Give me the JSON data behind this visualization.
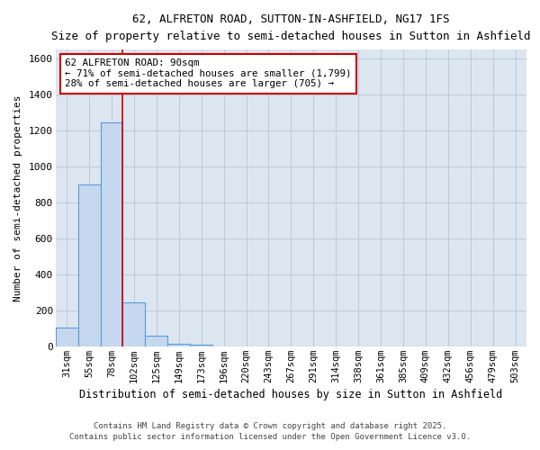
{
  "title": "62, ALFRETON ROAD, SUTTON-IN-ASHFIELD, NG17 1FS",
  "subtitle": "Size of property relative to semi-detached houses in Sutton in Ashfield",
  "xlabel": "Distribution of semi-detached houses by size in Sutton in Ashfield",
  "ylabel": "Number of semi-detached properties",
  "categories": [
    "31sqm",
    "55sqm",
    "78sqm",
    "102sqm",
    "125sqm",
    "149sqm",
    "173sqm",
    "196sqm",
    "220sqm",
    "243sqm",
    "267sqm",
    "291sqm",
    "314sqm",
    "338sqm",
    "361sqm",
    "385sqm",
    "409sqm",
    "432sqm",
    "456sqm",
    "479sqm",
    "503sqm"
  ],
  "values": [
    105,
    900,
    1245,
    245,
    60,
    15,
    10,
    0,
    0,
    0,
    0,
    0,
    0,
    0,
    0,
    0,
    0,
    0,
    0,
    0,
    0
  ],
  "bar_color": "#c5d8f0",
  "bar_edge_color": "#5b9bd5",
  "grid_color": "#c0c8d8",
  "bg_color": "#dce6f0",
  "vline_color": "#cc0000",
  "annotation_text": "62 ALFRETON ROAD: 90sqm\n← 71% of semi-detached houses are smaller (1,799)\n28% of semi-detached houses are larger (705) →",
  "annotation_box_color": "#ffffff",
  "annotation_box_edge": "#cc0000",
  "ylim": [
    0,
    1650
  ],
  "yticks": [
    0,
    200,
    400,
    600,
    800,
    1000,
    1200,
    1400,
    1600
  ],
  "footer1": "Contains HM Land Registry data © Crown copyright and database right 2025.",
  "footer2": "Contains public sector information licensed under the Open Government Licence v3.0."
}
